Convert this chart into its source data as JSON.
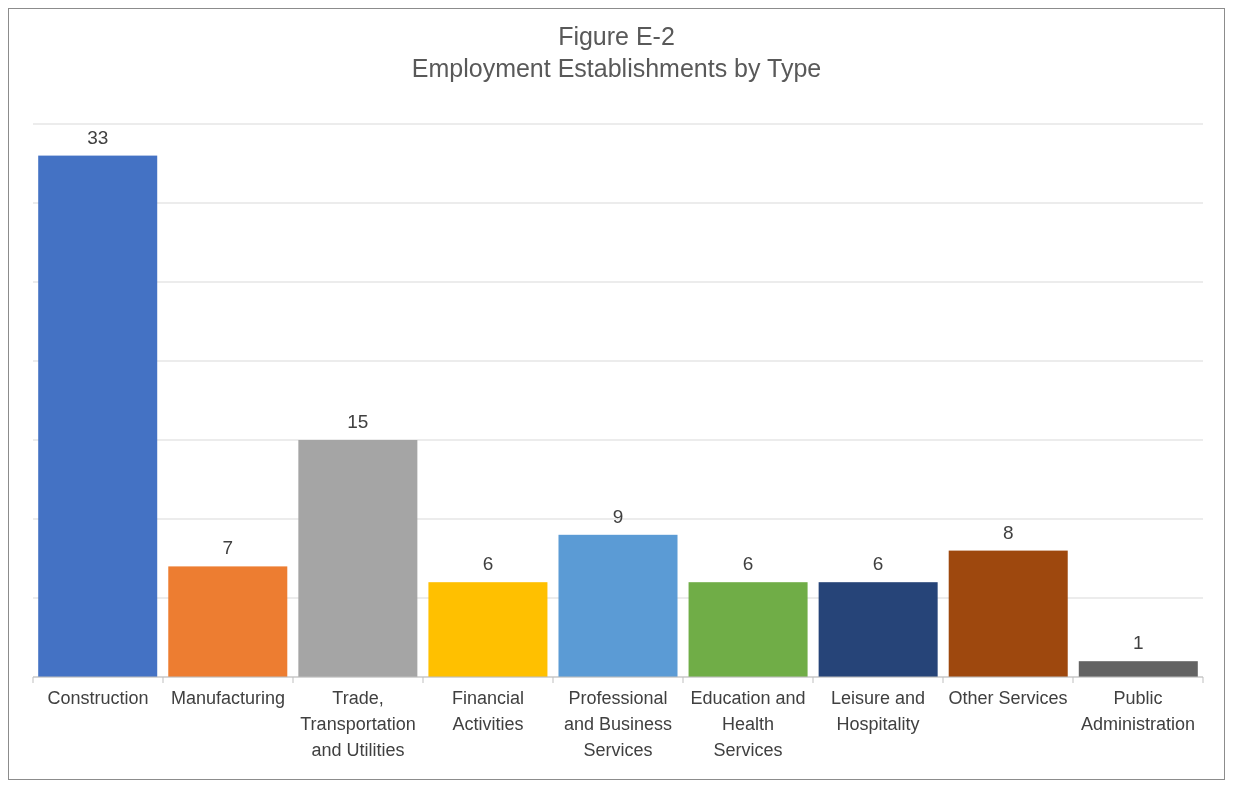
{
  "chart_data": {
    "type": "bar",
    "title": "Figure E-2",
    "subtitle": "Employment Establishments by Type",
    "categories": [
      "Construction",
      "Manufacturing",
      "Trade, Transportation and Utilities",
      "Financial Activities",
      "Professional and Business Services",
      "Education and Health Services",
      "Leisure and Hospitality",
      "Other Services",
      "Public Administration"
    ],
    "values": [
      33,
      7,
      15,
      6,
      9,
      6,
      6,
      8,
      1
    ],
    "colors": [
      "#4472c4",
      "#ed7d31",
      "#a5a5a5",
      "#ffc000",
      "#5b9bd5",
      "#70ad47",
      "#264478",
      "#9e480e",
      "#636363"
    ],
    "ylim": [
      0,
      35
    ],
    "yticks": [
      {
        "value": 0,
        "label": null
      },
      {
        "value": 5,
        "label": null
      },
      {
        "value": 10,
        "label": null
      },
      {
        "value": 15,
        "label": null
      },
      {
        "value": 20,
        "label": null
      },
      {
        "value": 25,
        "label": null
      },
      {
        "value": 30,
        "label": null
      },
      {
        "value": 35,
        "label": null
      }
    ],
    "tick_labels": "x",
    "grid": "y",
    "data_labels": true
  }
}
